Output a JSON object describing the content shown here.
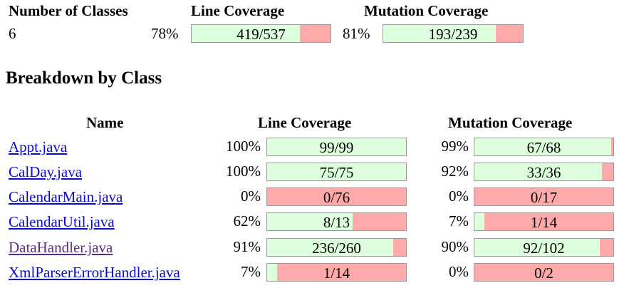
{
  "summary": {
    "headers": {
      "classes": "Number of Classes",
      "line": "Line Coverage",
      "mutation": "Mutation Coverage"
    },
    "classes": "6",
    "line": {
      "percent": "78%",
      "ratio": "419/537",
      "covered": 419,
      "total": 537
    },
    "mutation": {
      "percent": "81%",
      "ratio": "193/239",
      "covered": 193,
      "total": 239
    }
  },
  "breakdown": {
    "title": "Breakdown by Class",
    "headers": {
      "name": "Name",
      "line": "Line Coverage",
      "mutation": "Mutation Coverage"
    },
    "rows": [
      {
        "name": "Appt.java",
        "line_pct": "100%",
        "line_ratio": "99/99",
        "line_cov": 99,
        "line_tot": 99,
        "mut_pct": "99%",
        "mut_ratio": "67/68",
        "mut_cov": 67,
        "mut_tot": 68
      },
      {
        "name": "CalDay.java",
        "line_pct": "100%",
        "line_ratio": "75/75",
        "line_cov": 75,
        "line_tot": 75,
        "mut_pct": "92%",
        "mut_ratio": "33/36",
        "mut_cov": 33,
        "mut_tot": 36
      },
      {
        "name": "CalendarMain.java",
        "line_pct": "0%",
        "line_ratio": "0/76",
        "line_cov": 0,
        "line_tot": 76,
        "mut_pct": "0%",
        "mut_ratio": "0/17",
        "mut_cov": 0,
        "mut_tot": 17
      },
      {
        "name": "CalendarUtil.java",
        "line_pct": "62%",
        "line_ratio": "8/13",
        "line_cov": 8,
        "line_tot": 13,
        "mut_pct": "7%",
        "mut_ratio": "1/14",
        "mut_cov": 1,
        "mut_tot": 14
      },
      {
        "name": "DataHandler.java",
        "line_pct": "91%",
        "line_ratio": "236/260",
        "line_cov": 236,
        "line_tot": 260,
        "mut_pct": "90%",
        "mut_ratio": "92/102",
        "mut_cov": 92,
        "mut_tot": 102
      },
      {
        "name": "XmlParserErrorHandler.java",
        "line_pct": "7%",
        "line_ratio": "1/14",
        "line_cov": 1,
        "line_tot": 14,
        "mut_pct": "0%",
        "mut_ratio": "0/2",
        "mut_cov": 0,
        "mut_tot": 2
      }
    ]
  },
  "colors": {
    "covered": "#ddffdd",
    "uncovered": "#ffaaaa",
    "link": "#0a0ad0",
    "visited_link": "#5b2c83"
  }
}
